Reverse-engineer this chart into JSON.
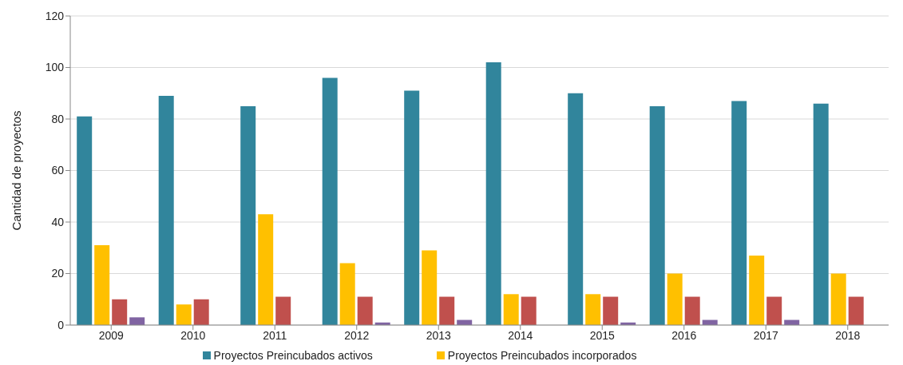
{
  "chart_data": {
    "type": "bar",
    "ylabel": "Cantidad de proyectos",
    "categories": [
      "2009",
      "2010",
      "2011",
      "2012",
      "2013",
      "2014",
      "2015",
      "2016",
      "2017",
      "2018"
    ],
    "series": [
      {
        "name": "Proyectos Preincubados activos",
        "color": "#31859c",
        "values": [
          81,
          89,
          85,
          96,
          91,
          102,
          90,
          85,
          87,
          86
        ]
      },
      {
        "name": "Proyectos  Preincubados incorporados",
        "color": "#ffc000",
        "values": [
          31,
          8,
          43,
          24,
          29,
          12,
          12,
          20,
          27,
          20
        ]
      },
      {
        "color": "#c0504d",
        "values": [
          10,
          10,
          11,
          11,
          11,
          11,
          11,
          11,
          11,
          11
        ]
      },
      {
        "color": "#8064a2",
        "values": [
          3,
          null,
          null,
          1,
          2,
          null,
          1,
          2,
          2,
          null
        ]
      }
    ],
    "ylim": [
      0,
      120
    ],
    "yticks": [
      0,
      20,
      40,
      60,
      80,
      100,
      120
    ],
    "grid": "y",
    "legend": "bottom"
  }
}
